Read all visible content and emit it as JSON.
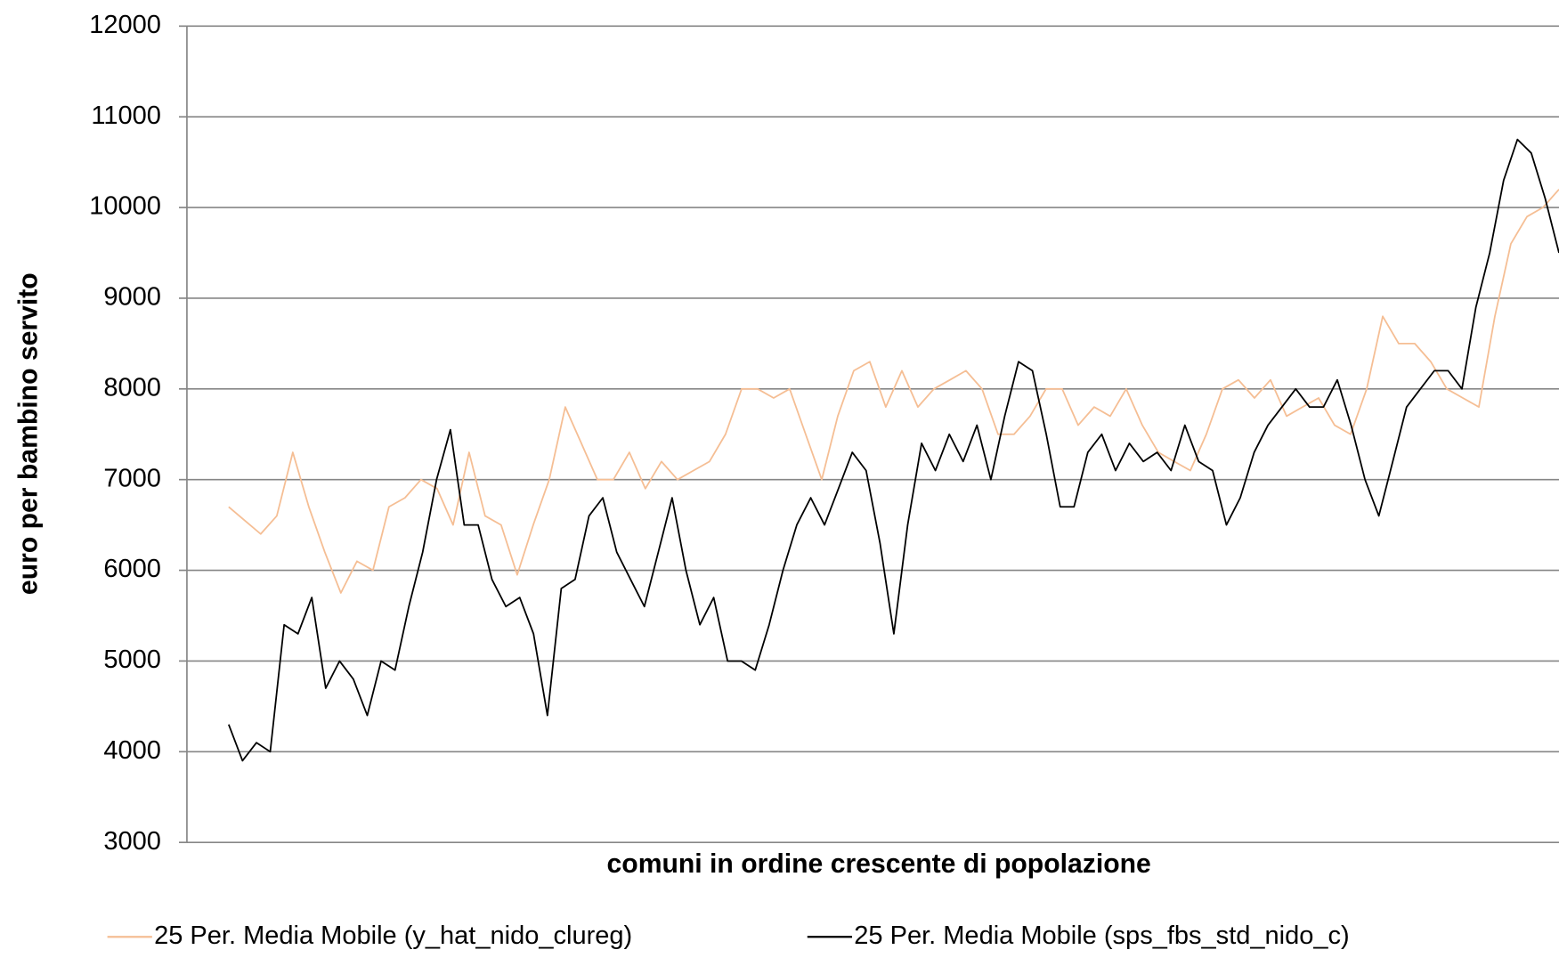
{
  "chart_data": {
    "type": "line",
    "x_label": "comuni in ordine crescente di popolazione",
    "y_label": "euro per bambino servito",
    "ylim": [
      3000,
      12000
    ],
    "yticks": [
      3000,
      4000,
      5000,
      6000,
      7000,
      8000,
      9000,
      10000,
      11000,
      12000
    ],
    "grid": true,
    "legend": "bottom",
    "series": [
      {
        "name": "25 Per. Media Mobile (y_hat_nido_clureg)",
        "color": "#f5be94",
        "values": [
          6700,
          6550,
          6400,
          6600,
          7300,
          6700,
          6200,
          5750,
          6100,
          6000,
          6700,
          6800,
          7000,
          6900,
          6500,
          7300,
          6600,
          6500,
          5950,
          6500,
          7000,
          7800,
          7400,
          7000,
          7000,
          7300,
          6900,
          7200,
          7000,
          7100,
          7200,
          7500,
          8000,
          8000,
          7900,
          8000,
          7500,
          7000,
          7700,
          8200,
          8300,
          7800,
          8200,
          7800,
          8000,
          8100,
          8200,
          8000,
          7500,
          7500,
          7700,
          8000,
          8000,
          7600,
          7800,
          7700,
          8000,
          7600,
          7300,
          7200,
          7100,
          7500,
          8000,
          8100,
          7900,
          8100,
          7700,
          7800,
          7900,
          7600,
          7500,
          8000,
          8800,
          8500,
          8500,
          8300,
          8000,
          7900,
          7800,
          8800,
          9600,
          9900,
          10000,
          10200
        ]
      },
      {
        "name": "25 Per. Media Mobile (sps_fbs_std_nido_c)",
        "color": "#000000",
        "values": [
          4300,
          3900,
          4100,
          4000,
          5400,
          5300,
          5700,
          4700,
          5000,
          4800,
          4400,
          5000,
          4900,
          5600,
          6200,
          7000,
          7550,
          6500,
          6500,
          5900,
          5600,
          5700,
          5300,
          4400,
          5800,
          5900,
          6600,
          6800,
          6200,
          5900,
          5600,
          6200,
          6800,
          6000,
          5400,
          5700,
          5000,
          5000,
          4900,
          5400,
          6000,
          6500,
          6800,
          6500,
          6900,
          7300,
          7100,
          6300,
          5300,
          6500,
          7400,
          7100,
          7500,
          7200,
          7600,
          7000,
          7700,
          8300,
          8200,
          7500,
          6700,
          6700,
          7300,
          7500,
          7100,
          7400,
          7200,
          7300,
          7100,
          7600,
          7200,
          7100,
          6500,
          6800,
          7300,
          7600,
          7800,
          8000,
          7800,
          7800,
          8100,
          7600,
          7000,
          6600,
          7200,
          7800,
          8000,
          8200,
          8200,
          8000,
          8900,
          9500,
          10300,
          10750,
          10600,
          10100,
          9500
        ]
      }
    ]
  }
}
